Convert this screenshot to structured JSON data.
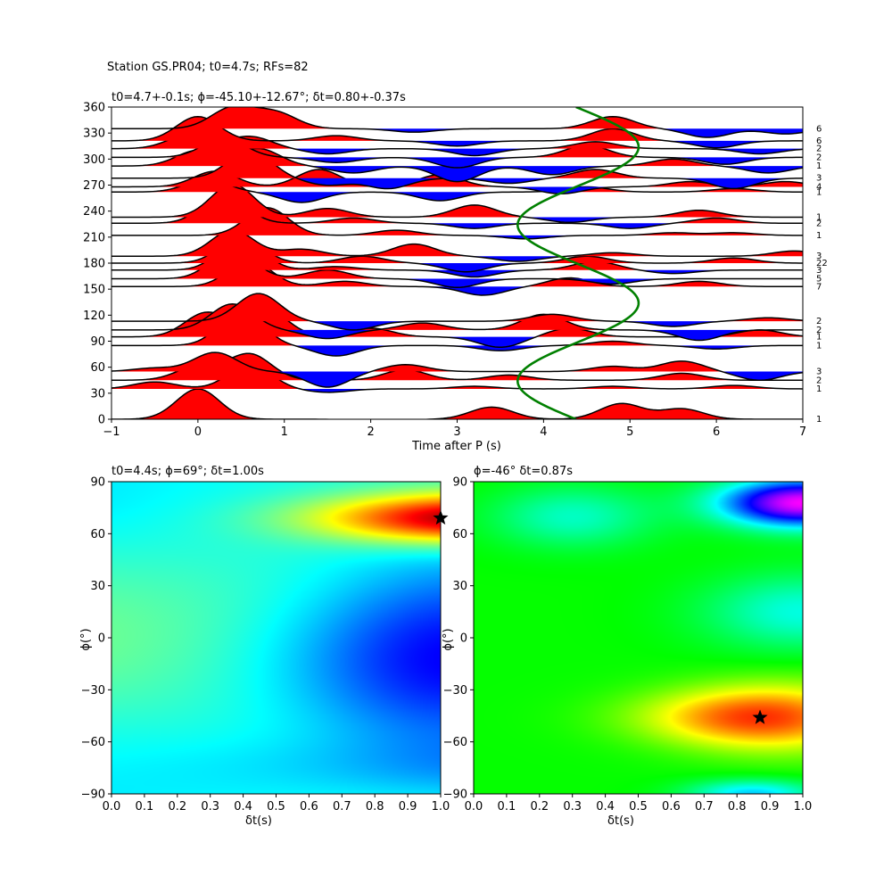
{
  "suptitle": "Station GS.PR04; t0=4.7s; RFs=82",
  "chart_data": [
    {
      "type": "line",
      "name": "receiver-functions",
      "title": "t0=4.7+-0.1s; ϕ=-45.10+-12.67°; δt=0.80+-0.37s",
      "xlabel": "Time after P (s)",
      "ylabel": "",
      "xlim": [
        -1,
        7
      ],
      "ylim": [
        0,
        360
      ],
      "xticks": [
        "−1",
        "0",
        "1",
        "2",
        "3",
        "4",
        "5",
        "6",
        "7"
      ],
      "yticks": [
        "0",
        "30",
        "60",
        "90",
        "120",
        "150",
        "180",
        "210",
        "240",
        "270",
        "300",
        "330",
        "360"
      ],
      "positive_color": "#ff0000",
      "negative_color": "#0000ff",
      "curve_color": "#008000",
      "traces": [
        {
          "baz": 0,
          "count": "1",
          "peaks": [
            [
              0.0,
              35
            ],
            [
              2.1,
              -4
            ],
            [
              3.4,
              14
            ],
            [
              4.9,
              18
            ],
            [
              5.6,
              12
            ]
          ]
        },
        {
          "baz": 35,
          "count": "1",
          "peaks": [
            [
              -0.5,
              8
            ],
            [
              0.6,
              28
            ],
            [
              1.5,
              -4
            ],
            [
              3.2,
              3
            ],
            [
              4.8,
              3
            ],
            [
              6.2,
              4
            ]
          ]
        },
        {
          "baz": 45,
          "count": "2",
          "peaks": [
            [
              0.0,
              16
            ],
            [
              0.6,
              30
            ],
            [
              2.4,
              12
            ],
            [
              3.6,
              6
            ],
            [
              5.6,
              8
            ]
          ]
        },
        {
          "baz": 55,
          "count": "3",
          "peaks": [
            [
              -0.5,
              4
            ],
            [
              0.2,
              22
            ],
            [
              1.5,
              -18
            ],
            [
              2.4,
              8
            ],
            [
              4.8,
              6
            ],
            [
              5.6,
              12
            ],
            [
              6.5,
              -10
            ]
          ]
        },
        {
          "baz": 85,
          "count": "1",
          "peaks": [
            [
              0.5,
              40
            ],
            [
              1.6,
              -12
            ],
            [
              3.5,
              -6
            ],
            [
              4.8,
              5
            ],
            [
              6.0,
              -4
            ]
          ]
        },
        {
          "baz": 95,
          "count": "1",
          "peaks": [
            [
              0.1,
              28
            ],
            [
              0.8,
              30
            ],
            [
              2.0,
              10
            ],
            [
              3.5,
              -12
            ],
            [
              4.3,
              10
            ],
            [
              6.5,
              8
            ]
          ]
        },
        {
          "baz": 103,
          "count": "2",
          "peaks": [
            [
              0.4,
              30
            ],
            [
              1.5,
              -10
            ],
            [
              2.6,
              8
            ],
            [
              4.0,
              18
            ],
            [
              5.8,
              -12
            ]
          ]
        },
        {
          "baz": 113,
          "count": "2",
          "peaks": [
            [
              0.7,
              32
            ],
            [
              1.8,
              -10
            ],
            [
              4.1,
              8
            ],
            [
              5.5,
              -6
            ],
            [
              6.6,
              4
            ]
          ]
        },
        {
          "baz": 153,
          "count": "7",
          "peaks": [
            [
              0.6,
              30
            ],
            [
              1.7,
              6
            ],
            [
              3.3,
              -10
            ],
            [
              4.3,
              10
            ],
            [
              5.8,
              6
            ]
          ]
        },
        {
          "baz": 162,
          "count": "5",
          "peaks": [
            [
              0.4,
              34
            ],
            [
              1.5,
              10
            ],
            [
              3.0,
              -10
            ],
            [
              4.8,
              -6
            ]
          ]
        },
        {
          "baz": 172,
          "count": "3",
          "peaks": [
            [
              0.5,
              38
            ],
            [
              1.6,
              4
            ],
            [
              3.2,
              -8
            ],
            [
              4.6,
              10
            ],
            [
              5.5,
              -4
            ]
          ]
        },
        {
          "baz": 180,
          "count": "22",
          "peaks": [
            [
              0.5,
              30
            ],
            [
              1.9,
              8
            ],
            [
              3.1,
              -10
            ],
            [
              4.5,
              8
            ],
            [
              6.2,
              6
            ]
          ]
        },
        {
          "baz": 188,
          "count": "3",
          "peaks": [
            [
              0.4,
              30
            ],
            [
              1.2,
              8
            ],
            [
              2.5,
              14
            ],
            [
              3.7,
              -6
            ],
            [
              4.8,
              4
            ],
            [
              6.9,
              6
            ]
          ]
        },
        {
          "baz": 212,
          "count": "1",
          "peaks": [
            [
              0.8,
              32
            ],
            [
              2.3,
              6
            ],
            [
              3.8,
              -4
            ],
            [
              5.5,
              3
            ],
            [
              6.2,
              3
            ]
          ]
        },
        {
          "baz": 226,
          "count": "2",
          "peaks": [
            [
              0.3,
              34
            ],
            [
              1.8,
              6
            ],
            [
              3.2,
              -6
            ],
            [
              5.0,
              -6
            ],
            [
              6.0,
              6
            ]
          ]
        },
        {
          "baz": 233,
          "count": "1",
          "peaks": [
            [
              0.4,
              38
            ],
            [
              1.5,
              10
            ],
            [
              3.2,
              14
            ],
            [
              4.3,
              -6
            ],
            [
              5.8,
              8
            ]
          ]
        },
        {
          "baz": 262,
          "count": "1",
          "peaks": [
            [
              0.1,
              14
            ],
            [
              1.2,
              -12
            ],
            [
              2.8,
              -10
            ],
            [
              4.5,
              6
            ],
            [
              6.2,
              4
            ]
          ]
        },
        {
          "baz": 268,
          "count": "4",
          "peaks": [
            [
              0.2,
              18
            ],
            [
              1.4,
              20
            ],
            [
              2.8,
              14
            ],
            [
              4.2,
              -8
            ],
            [
              5.7,
              6
            ],
            [
              6.8,
              6
            ]
          ]
        },
        {
          "baz": 278,
          "count": "3",
          "peaks": [
            [
              0.6,
              32
            ],
            [
              1.5,
              -8
            ],
            [
              2.2,
              -12
            ],
            [
              3.6,
              -6
            ],
            [
              4.6,
              10
            ],
            [
              6.2,
              -12
            ]
          ]
        },
        {
          "baz": 292,
          "count": "1",
          "peaks": [
            [
              0.0,
              18
            ],
            [
              0.7,
              20
            ],
            [
              1.8,
              -8
            ],
            [
              3.0,
              -18
            ],
            [
              4.1,
              -10
            ],
            [
              5.5,
              8
            ],
            [
              6.6,
              -8
            ]
          ]
        },
        {
          "baz": 302,
          "count": "2",
          "peaks": [
            [
              0.3,
              22
            ],
            [
              1.6,
              -6
            ],
            [
              3.0,
              -12
            ],
            [
              4.5,
              14
            ],
            [
              6.1,
              -8
            ]
          ]
        },
        {
          "baz": 312,
          "count": "2",
          "peaks": [
            [
              -0.1,
              16
            ],
            [
              0.6,
              14
            ],
            [
              1.5,
              -6
            ],
            [
              3.2,
              -8
            ],
            [
              4.6,
              8
            ],
            [
              6.5,
              -6
            ]
          ]
        },
        {
          "baz": 321,
          "count": "6",
          "peaks": [
            [
              0.0,
              28
            ],
            [
              1.6,
              6
            ],
            [
              3.0,
              -6
            ],
            [
              4.8,
              14
            ],
            [
              6.0,
              -8
            ]
          ]
        },
        {
          "baz": 335,
          "count": "6",
          "peaks": [
            [
              0.4,
              24
            ],
            [
              0.9,
              18
            ],
            [
              2.5,
              -4
            ],
            [
              4.8,
              14
            ],
            [
              5.9,
              -10
            ],
            [
              6.8,
              -6
            ]
          ]
        }
      ]
    },
    {
      "type": "heatmap",
      "name": "energy-map-left",
      "title": "t0=4.4s; ϕ=69°; δt=1.00s",
      "xlabel": "δt(s)",
      "ylabel": "ϕ(°)",
      "xlim": [
        0,
        1
      ],
      "ylim": [
        -90,
        90
      ],
      "xticks": [
        "0.0",
        "0.1",
        "0.2",
        "0.3",
        "0.4",
        "0.5",
        "0.6",
        "0.7",
        "0.8",
        "0.9",
        "1.0"
      ],
      "yticks": [
        "−90",
        "−60",
        "−30",
        "0",
        "30",
        "60",
        "90"
      ],
      "colormap": "jet",
      "best_fit": {
        "dt": 1.0,
        "phi": 69
      }
    },
    {
      "type": "heatmap",
      "name": "energy-map-right",
      "title": "ϕ=-46° δt=0.87s",
      "xlabel": "δt(s)",
      "ylabel": "ϕ(°)",
      "xlim": [
        0,
        1
      ],
      "ylim": [
        -90,
        90
      ],
      "xticks": [
        "0.0",
        "0.1",
        "0.2",
        "0.3",
        "0.4",
        "0.5",
        "0.6",
        "0.7",
        "0.8",
        "0.9",
        "1.0"
      ],
      "yticks": [
        "−90",
        "−60",
        "−30",
        "0",
        "30",
        "60",
        "90"
      ],
      "colormap": "hsv",
      "best_fit": {
        "dt": 0.87,
        "phi": -46
      }
    }
  ]
}
